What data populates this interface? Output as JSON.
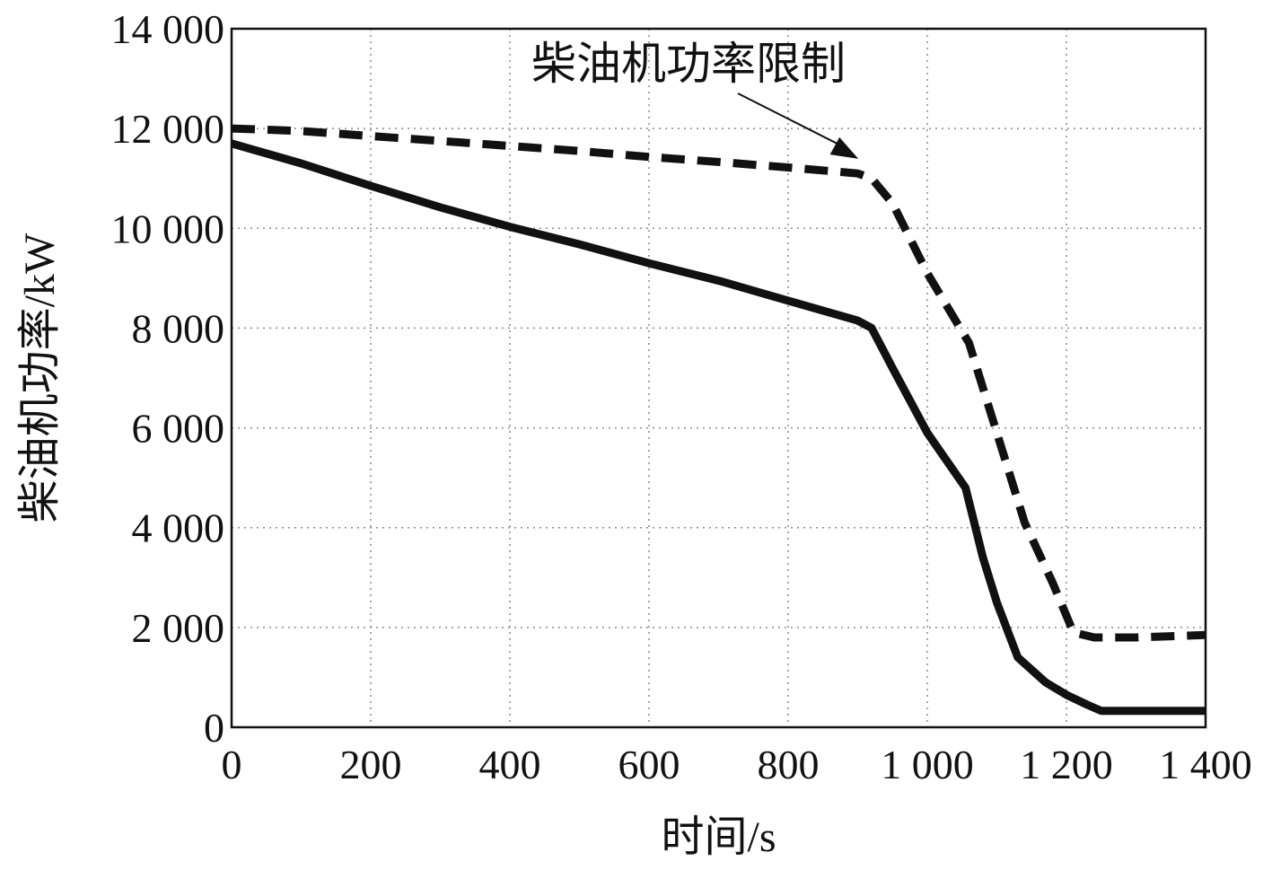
{
  "chart_data": {
    "type": "line",
    "xlabel": "时间/s",
    "ylabel": "柴油机功率/kW",
    "xlim": [
      0,
      1400
    ],
    "ylim": [
      0,
      14000
    ],
    "grid": true,
    "x_ticks": [
      {
        "value": 0,
        "label": "0"
      },
      {
        "value": 200,
        "label": "200"
      },
      {
        "value": 400,
        "label": "400"
      },
      {
        "value": 600,
        "label": "600"
      },
      {
        "value": 800,
        "label": "800"
      },
      {
        "value": 1000,
        "label": "1 000"
      },
      {
        "value": 1200,
        "label": "1 200"
      },
      {
        "value": 1400,
        "label": "1 400"
      }
    ],
    "y_ticks": [
      {
        "value": 0,
        "label": "0"
      },
      {
        "value": 2000,
        "label": "2 000"
      },
      {
        "value": 4000,
        "label": "4 000"
      },
      {
        "value": 6000,
        "label": "6 000"
      },
      {
        "value": 8000,
        "label": "8 000"
      },
      {
        "value": 10000,
        "label": "10 000"
      },
      {
        "value": 12000,
        "label": "12 000"
      },
      {
        "value": 14000,
        "label": "14 000"
      }
    ],
    "series": [
      {
        "style": "dashed",
        "color": "#111111",
        "points": [
          [
            0,
            12000
          ],
          [
            100,
            11950
          ],
          [
            200,
            11850
          ],
          [
            300,
            11750
          ],
          [
            400,
            11650
          ],
          [
            500,
            11550
          ],
          [
            600,
            11430
          ],
          [
            700,
            11330
          ],
          [
            800,
            11220
          ],
          [
            900,
            11100
          ],
          [
            920,
            11000
          ],
          [
            950,
            10500
          ],
          [
            1000,
            9100
          ],
          [
            1060,
            7700
          ],
          [
            1100,
            5900
          ],
          [
            1140,
            4100
          ],
          [
            1180,
            2900
          ],
          [
            1210,
            1900
          ],
          [
            1240,
            1800
          ],
          [
            1300,
            1800
          ],
          [
            1400,
            1850
          ]
        ]
      },
      {
        "style": "solid",
        "color": "#111111",
        "points": [
          [
            0,
            11700
          ],
          [
            100,
            11300
          ],
          [
            200,
            10850
          ],
          [
            300,
            10420
          ],
          [
            400,
            10030
          ],
          [
            500,
            9680
          ],
          [
            600,
            9300
          ],
          [
            700,
            8950
          ],
          [
            800,
            8550
          ],
          [
            900,
            8150
          ],
          [
            920,
            8000
          ],
          [
            950,
            7200
          ],
          [
            1000,
            5900
          ],
          [
            1055,
            4800
          ],
          [
            1080,
            3400
          ],
          [
            1100,
            2500
          ],
          [
            1130,
            1400
          ],
          [
            1170,
            900
          ],
          [
            1200,
            650
          ],
          [
            1230,
            450
          ],
          [
            1250,
            330
          ],
          [
            1300,
            330
          ],
          [
            1400,
            330
          ]
        ]
      }
    ],
    "annotation": {
      "text": "柴油机功率限制",
      "target": [
        830,
        11250
      ]
    }
  }
}
